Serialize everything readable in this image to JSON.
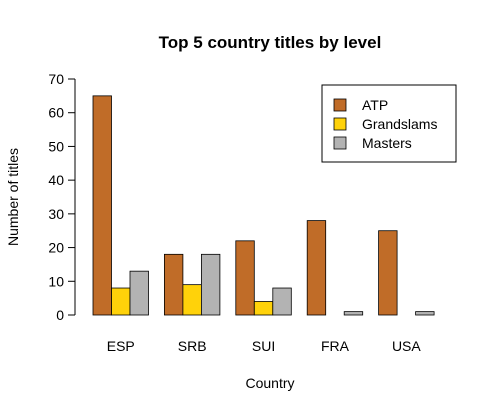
{
  "chart_data": {
    "type": "bar",
    "title": "Top 5 country titles by level",
    "xlabel": "Country",
    "ylabel": "Number of titles",
    "ylim": [
      0,
      70
    ],
    "yticks": [
      0,
      10,
      20,
      30,
      40,
      50,
      60,
      70
    ],
    "categories": [
      "ESP",
      "SRB",
      "SUI",
      "FRA",
      "USA"
    ],
    "series": [
      {
        "name": "ATP",
        "color": "#C06C28",
        "values": [
          65,
          18,
          22,
          28,
          25
        ]
      },
      {
        "name": "Grandslams",
        "color": "#FFD20A",
        "values": [
          8,
          9,
          4,
          0,
          0
        ]
      },
      {
        "name": "Masters",
        "color": "#B3B3B3",
        "values": [
          13,
          18,
          8,
          1,
          1
        ]
      }
    ],
    "legend_position": "top-right"
  }
}
